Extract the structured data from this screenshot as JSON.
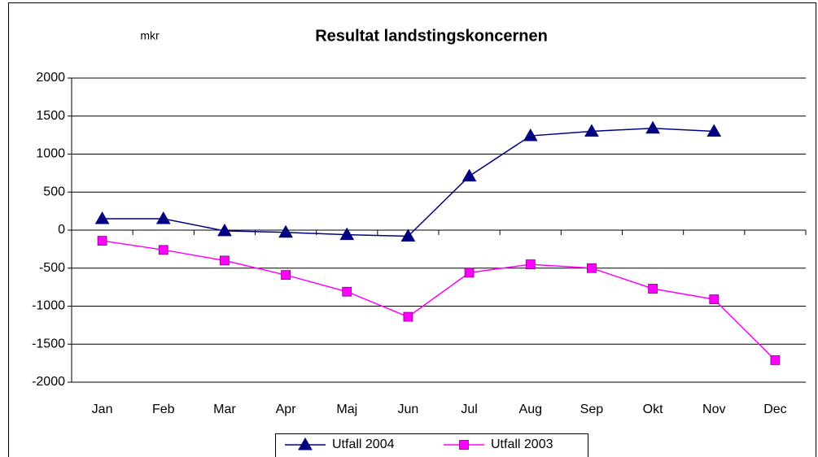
{
  "chart_data": {
    "type": "line",
    "title": "Resultat landstingskoncernen",
    "annotation": "mkr",
    "categories": [
      "Jan",
      "Feb",
      "Mar",
      "Apr",
      "Maj",
      "Jun",
      "Jul",
      "Aug",
      "Sep",
      "Okt",
      "Nov",
      "Dec"
    ],
    "series": [
      {
        "name": "Utfall 2004",
        "color": "#000080",
        "marker": "triangle",
        "values": [
          150,
          150,
          -10,
          -30,
          -60,
          -80,
          710,
          1240,
          1300,
          1340,
          1300,
          null
        ]
      },
      {
        "name": "Utfall 2003",
        "color": "#ff00ff",
        "marker": "square",
        "values": [
          -140,
          -260,
          -400,
          -590,
          -810,
          -1140,
          -560,
          -450,
          -500,
          -770,
          -910,
          -1710
        ]
      }
    ],
    "ylim": [
      -2000,
      2000
    ],
    "yticks": [
      -2000,
      -1500,
      -1000,
      -500,
      0,
      500,
      1000,
      1500,
      2000
    ],
    "grid": true,
    "legend": "bottom"
  }
}
